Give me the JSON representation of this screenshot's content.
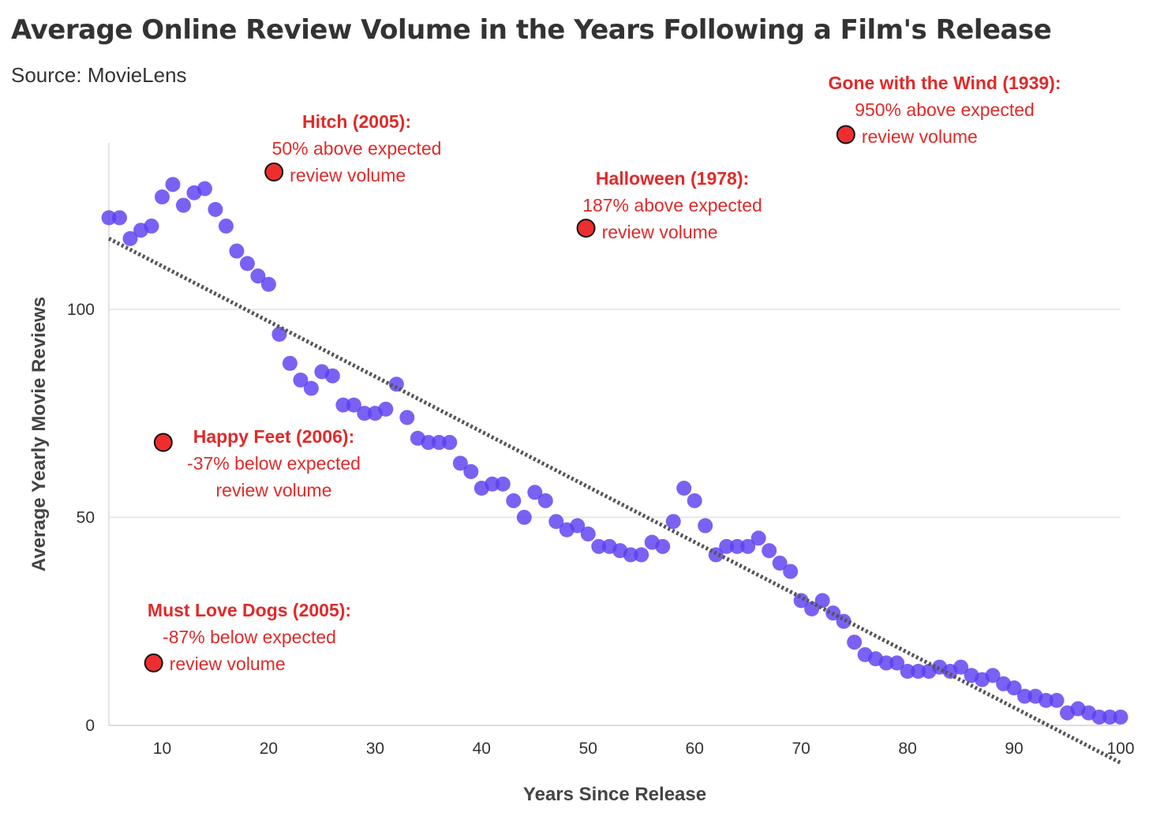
{
  "title": "Average Online Review Volume in the Years Following a Film's Release",
  "subtitle": "Source: MovieLens",
  "chart_data": {
    "type": "scatter",
    "xlabel": "Years Since Release",
    "ylabel": "Average Yearly Movie Reviews",
    "xlim": [
      5,
      100
    ],
    "ylim": [
      0,
      140
    ],
    "xticks": [
      10,
      20,
      30,
      40,
      50,
      60,
      70,
      80,
      90,
      100
    ],
    "yticks": [
      0,
      50,
      100
    ],
    "grid": "horizontal",
    "colors": {
      "points": "#5b3ff0",
      "trend": "#555555",
      "highlight": "#ee2e2e",
      "annotation_text": "#e02a2a"
    },
    "series": [
      {
        "x": [
          5,
          6,
          7,
          8,
          9,
          10,
          11,
          12,
          13,
          14,
          15,
          16,
          17,
          18,
          19,
          20,
          21,
          22,
          23,
          24,
          25,
          26,
          27,
          28,
          29,
          30,
          31,
          32,
          33,
          34,
          35,
          36,
          37,
          38,
          39,
          40,
          41,
          42,
          43,
          44,
          45,
          46,
          47,
          48,
          49,
          50,
          51,
          52,
          53,
          54,
          55,
          56,
          57,
          58,
          59,
          60,
          61,
          62,
          63,
          64,
          65,
          66,
          67,
          68,
          69,
          70,
          71,
          72,
          73,
          74,
          75,
          76,
          77,
          78,
          79,
          80,
          81,
          82,
          83,
          84,
          85,
          86,
          87,
          88,
          89,
          90,
          91,
          92,
          93,
          94,
          95,
          96,
          97,
          98,
          99,
          100
        ],
        "values": [
          122,
          122,
          117,
          119,
          120,
          127,
          130,
          125,
          128,
          129,
          124,
          120,
          114,
          111,
          108,
          106,
          94,
          87,
          83,
          81,
          85,
          84,
          77,
          77,
          75,
          75,
          76,
          82,
          74,
          69,
          68,
          68,
          68,
          63,
          61,
          57,
          58,
          58,
          54,
          50,
          56,
          54,
          49,
          47,
          48,
          46,
          43,
          43,
          42,
          41,
          41,
          44,
          43,
          49,
          57,
          54,
          48,
          41,
          43,
          43,
          43,
          45,
          42,
          39,
          37,
          30,
          28,
          30,
          27,
          25,
          20,
          17,
          16,
          15,
          15,
          13,
          13,
          13,
          14,
          13,
          14,
          12,
          11,
          12,
          10,
          9,
          7,
          7,
          6,
          6,
          3,
          4,
          3,
          2,
          2,
          2
        ]
      }
    ],
    "trendline": {
      "x": [
        5,
        100
      ],
      "y": [
        117,
        -9
      ]
    },
    "annotations": [
      {
        "title": "Hitch (2005):",
        "line1": "50% above expected",
        "line2": "review volume",
        "x": 20.5,
        "y": 133
      },
      {
        "title": "Halloween (1978):",
        "line1": "187% above expected",
        "line2": "review volume",
        "x": 49.8,
        "y": 119.5
      },
      {
        "title": "Gone with the Wind (1939):",
        "line1": "950% above expected",
        "line2": "review volume",
        "x": 74.2,
        "y": 142
      },
      {
        "title": "Happy Feet (2006):",
        "line1": "-37% below expected",
        "line2": "review volume",
        "x": 10.1,
        "y": 68
      },
      {
        "title": "Must Love Dogs (2005):",
        "line1": "-87% below expected",
        "line2": "review volume",
        "x": 9.2,
        "y": 15
      }
    ]
  }
}
